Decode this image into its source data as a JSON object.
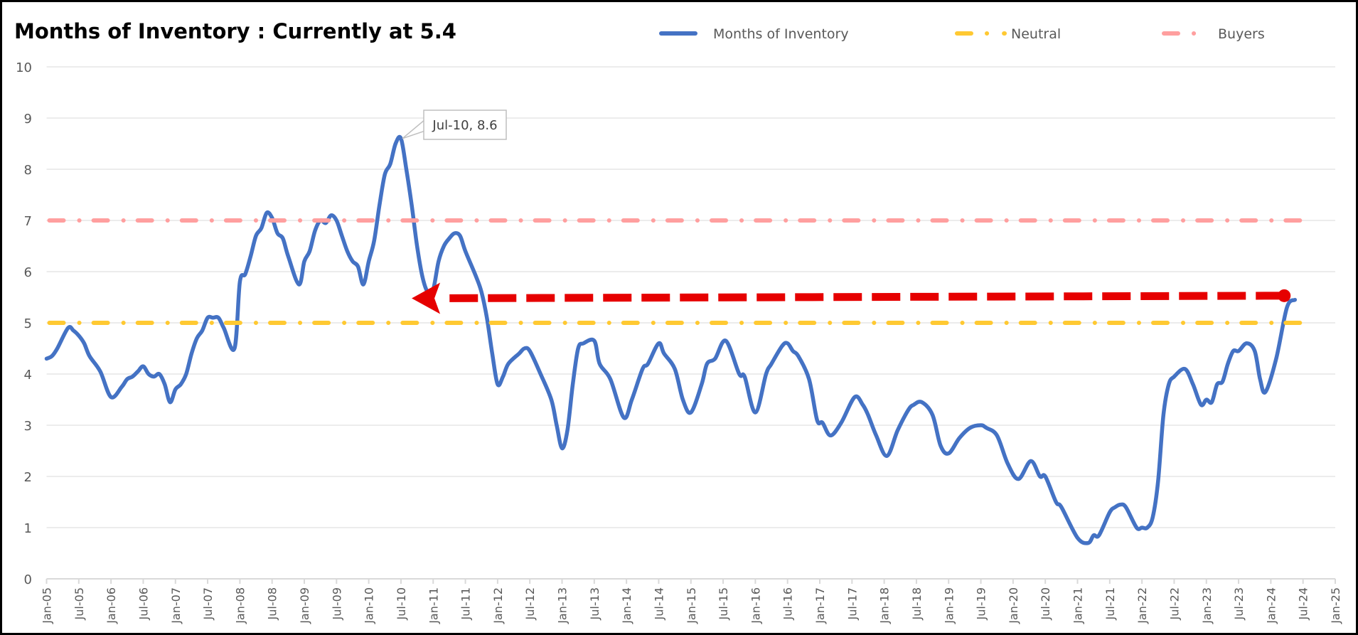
{
  "chart_data": {
    "type": "line",
    "title": "Months of Inventory : Currently at 5.4",
    "xlabel": "",
    "ylabel": "",
    "ylim": [
      0,
      10
    ],
    "yticks": [
      0,
      1,
      2,
      3,
      4,
      5,
      6,
      7,
      8,
      9,
      10
    ],
    "x_unit": "months since Jan-05",
    "xlim": [
      0,
      240
    ],
    "xtick_labels": [
      "Jan-05",
      "Jul-05",
      "Jan-06",
      "Jul-06",
      "Jan-07",
      "Jul-07",
      "Jan-08",
      "Jul-08",
      "Jan-09",
      "Jul-09",
      "Jan-10",
      "Jul-10",
      "Jan-11",
      "Jul-11",
      "Jan-12",
      "Jul-12",
      "Jan-13",
      "Jul-13",
      "Jan-14",
      "Jul-14",
      "Jan-15",
      "Jul-15",
      "Jan-16",
      "Jul-16",
      "Jan-17",
      "Jul-17",
      "Jan-18",
      "Jul-18",
      "Jan-19",
      "Jul-19",
      "Jan-20",
      "Jul-20",
      "Jan-21",
      "Jul-21",
      "Jan-22",
      "Jul-22",
      "Jan-23",
      "Jul-23",
      "Jan-24",
      "Jul-24",
      "Jan-25"
    ],
    "grid": true,
    "legend_position": "top-right",
    "series": [
      {
        "name": "Months of Inventory",
        "color": "#4472C4",
        "style": "solid",
        "points": [
          [
            0,
            4.3
          ],
          [
            1,
            4.35
          ],
          [
            2,
            4.5
          ],
          [
            4,
            4.9
          ],
          [
            5,
            4.85
          ],
          [
            6,
            4.75
          ],
          [
            7,
            4.6
          ],
          [
            8,
            4.35
          ],
          [
            10,
            4.05
          ],
          [
            12,
            3.55
          ],
          [
            14,
            3.75
          ],
          [
            15,
            3.9
          ],
          [
            16,
            3.95
          ],
          [
            17,
            4.05
          ],
          [
            18,
            4.15
          ],
          [
            19,
            4.0
          ],
          [
            20,
            3.95
          ],
          [
            21,
            4.0
          ],
          [
            22,
            3.8
          ],
          [
            23,
            3.45
          ],
          [
            24,
            3.7
          ],
          [
            25,
            3.8
          ],
          [
            26,
            4.0
          ],
          [
            27,
            4.4
          ],
          [
            28,
            4.7
          ],
          [
            29,
            4.85
          ],
          [
            30,
            5.1
          ],
          [
            31,
            5.1
          ],
          [
            32,
            5.1
          ],
          [
            33,
            4.9
          ],
          [
            35,
            4.5
          ],
          [
            36,
            5.8
          ],
          [
            37,
            5.95
          ],
          [
            38,
            6.3
          ],
          [
            39,
            6.7
          ],
          [
            40,
            6.85
          ],
          [
            41,
            7.15
          ],
          [
            42,
            7.05
          ],
          [
            43,
            6.75
          ],
          [
            44,
            6.65
          ],
          [
            45,
            6.3
          ],
          [
            47,
            5.75
          ],
          [
            48,
            6.2
          ],
          [
            49,
            6.4
          ],
          [
            50,
            6.8
          ],
          [
            51,
            7.0
          ],
          [
            52,
            6.95
          ],
          [
            53,
            7.1
          ],
          [
            54,
            7.0
          ],
          [
            55,
            6.7
          ],
          [
            56,
            6.4
          ],
          [
            57,
            6.2
          ],
          [
            58,
            6.1
          ],
          [
            59,
            5.75
          ],
          [
            60,
            6.2
          ],
          [
            61,
            6.6
          ],
          [
            62,
            7.3
          ],
          [
            63,
            7.9
          ],
          [
            64,
            8.1
          ],
          [
            65,
            8.5
          ],
          [
            66,
            8.6
          ],
          [
            67,
            8.0
          ],
          [
            68,
            7.3
          ],
          [
            69,
            6.5
          ],
          [
            70,
            5.9
          ],
          [
            71,
            5.6
          ],
          [
            72,
            5.65
          ],
          [
            73,
            6.2
          ],
          [
            74,
            6.5
          ],
          [
            75,
            6.65
          ],
          [
            76,
            6.75
          ],
          [
            77,
            6.7
          ],
          [
            78,
            6.4
          ],
          [
            80,
            5.9
          ],
          [
            81,
            5.6
          ],
          [
            82,
            5.1
          ],
          [
            83,
            4.4
          ],
          [
            84,
            3.8
          ],
          [
            85,
            3.95
          ],
          [
            86,
            4.2
          ],
          [
            88,
            4.4
          ],
          [
            89,
            4.5
          ],
          [
            90,
            4.45
          ],
          [
            92,
            4.0
          ],
          [
            94,
            3.5
          ],
          [
            95,
            3.0
          ],
          [
            96,
            2.55
          ],
          [
            97,
            2.9
          ],
          [
            98,
            3.8
          ],
          [
            99,
            4.5
          ],
          [
            100,
            4.6
          ],
          [
            102,
            4.65
          ],
          [
            103,
            4.2
          ],
          [
            105,
            3.9
          ],
          [
            107.5,
            3.15
          ],
          [
            109,
            3.5
          ],
          [
            111,
            4.1
          ],
          [
            112,
            4.2
          ],
          [
            114,
            4.6
          ],
          [
            115,
            4.4
          ],
          [
            117,
            4.1
          ],
          [
            118.5,
            3.5
          ],
          [
            120,
            3.25
          ],
          [
            122,
            3.8
          ],
          [
            123,
            4.2
          ],
          [
            124.5,
            4.3
          ],
          [
            126.5,
            4.65
          ],
          [
            129,
            4.0
          ],
          [
            130,
            3.95
          ],
          [
            132,
            3.25
          ],
          [
            134,
            4.0
          ],
          [
            135,
            4.2
          ],
          [
            137,
            4.55
          ],
          [
            138,
            4.6
          ],
          [
            139,
            4.45
          ],
          [
            140,
            4.35
          ],
          [
            142,
            3.9
          ],
          [
            143.5,
            3.1
          ],
          [
            144.5,
            3.05
          ],
          [
            146,
            2.8
          ],
          [
            148,
            3.05
          ],
          [
            150.5,
            3.55
          ],
          [
            152,
            3.4
          ],
          [
            153,
            3.2
          ],
          [
            154.5,
            2.8
          ],
          [
            156.5,
            2.4
          ],
          [
            158.5,
            2.9
          ],
          [
            160.5,
            3.3
          ],
          [
            161.5,
            3.4
          ],
          [
            163,
            3.45
          ],
          [
            165,
            3.2
          ],
          [
            166.5,
            2.6
          ],
          [
            168,
            2.45
          ],
          [
            170,
            2.75
          ],
          [
            172,
            2.95
          ],
          [
            174,
            3.0
          ],
          [
            175,
            2.95
          ],
          [
            177,
            2.8
          ],
          [
            179,
            2.25
          ],
          [
            181,
            1.95
          ],
          [
            183.3,
            2.3
          ],
          [
            185,
            2.0
          ],
          [
            186,
            2.0
          ],
          [
            188,
            1.5
          ],
          [
            189,
            1.4
          ],
          [
            192,
            0.8
          ],
          [
            194,
            0.7
          ],
          [
            195,
            0.85
          ],
          [
            196,
            0.85
          ],
          [
            198,
            1.3
          ],
          [
            199,
            1.4
          ],
          [
            200,
            1.45
          ],
          [
            201,
            1.4
          ],
          [
            203,
            1.0
          ],
          [
            204,
            1.0
          ],
          [
            205,
            1.0
          ],
          [
            206,
            1.2
          ],
          [
            207,
            1.9
          ],
          [
            208,
            3.2
          ],
          [
            209,
            3.8
          ],
          [
            210,
            3.95
          ],
          [
            212,
            4.1
          ],
          [
            213.5,
            3.8
          ],
          [
            215,
            3.4
          ],
          [
            216,
            3.5
          ],
          [
            217,
            3.45
          ],
          [
            218,
            3.8
          ],
          [
            219,
            3.85
          ],
          [
            220,
            4.2
          ],
          [
            221,
            4.45
          ],
          [
            222,
            4.45
          ],
          [
            223.5,
            4.6
          ],
          [
            225,
            4.45
          ],
          [
            226,
            3.9
          ],
          [
            227,
            3.65
          ],
          [
            229,
            4.3
          ],
          [
            231,
            5.3
          ],
          [
            232.5,
            5.45
          ]
        ]
      },
      {
        "name": "Neutral",
        "color": "#FFC932",
        "style": "dash-dot",
        "value": 5,
        "range": [
          0,
          234
        ]
      },
      {
        "name": "Buyers",
        "color": "#FF9F9F",
        "style": "dash-dot",
        "value": 7,
        "range": [
          0,
          234
        ]
      }
    ],
    "annotations": [
      {
        "text": "Jul-10, 8.6",
        "x": 66,
        "y": 8.6
      },
      {
        "type": "arrow",
        "color": "#E60000",
        "from": [
          230.5,
          5.53
        ],
        "to": [
          68,
          5.48
        ]
      }
    ]
  }
}
